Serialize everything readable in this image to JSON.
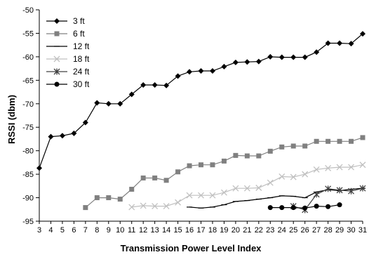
{
  "chart_data": {
    "type": "line",
    "xlabel": "Transmission Power Level Index",
    "ylabel": "RSSI (dbm)",
    "xlim": [
      3,
      31
    ],
    "ylim": [
      -95,
      -50
    ],
    "xticks": [
      3,
      4,
      5,
      6,
      7,
      8,
      9,
      10,
      11,
      12,
      13,
      14,
      15,
      16,
      17,
      18,
      19,
      20,
      21,
      22,
      23,
      24,
      25,
      26,
      27,
      28,
      29,
      30,
      31
    ],
    "yticks": [
      -95,
      -90,
      -85,
      -80,
      -75,
      -70,
      -65,
      -60,
      -55,
      -50
    ],
    "grid": false,
    "legend_position": "top-left",
    "series": [
      {
        "name": "3 ft",
        "color": "#000000",
        "marker": "diamond",
        "x": [
          3,
          4,
          5,
          6,
          7,
          8,
          9,
          10,
          11,
          12,
          13,
          14,
          15,
          16,
          17,
          18,
          19,
          20,
          21,
          22,
          23,
          24,
          25,
          26,
          27,
          28,
          29,
          30,
          31
        ],
        "y": [
          -83.7,
          -77,
          -76.8,
          -76.3,
          -74,
          -69.8,
          -70,
          -70,
          -68,
          -66,
          -66,
          -66.1,
          -64.1,
          -63.2,
          -63,
          -63,
          -62.1,
          -61.2,
          -61.1,
          -61,
          -60,
          -60.1,
          -60.1,
          -60.1,
          -59,
          -57.1,
          -57.1,
          -57.2,
          -55.1
        ]
      },
      {
        "name": "6 ft",
        "color": "#808080",
        "marker": "square",
        "x": [
          7,
          8,
          9,
          10,
          11,
          12,
          13,
          14,
          15,
          16,
          17,
          18,
          19,
          20,
          21,
          22,
          23,
          24,
          25,
          26,
          27,
          28,
          29,
          30,
          31
        ],
        "y": [
          -92.1,
          -90,
          -90,
          -90.3,
          -88.2,
          -85.8,
          -85.8,
          -86.3,
          -84.5,
          -83.2,
          -83,
          -83,
          -82.2,
          -81,
          -81.1,
          -81.1,
          -80.1,
          -79.2,
          -79,
          -79,
          -78,
          -78,
          -78,
          -78,
          -77.2
        ]
      },
      {
        "name": "12 ft",
        "color": "#000000",
        "marker": "dash",
        "x": [
          16,
          17,
          18,
          19,
          20,
          21,
          22,
          23,
          24,
          25,
          26,
          27,
          28,
          29,
          30,
          31
        ],
        "y": [
          -92,
          -92.2,
          -92,
          -91.5,
          -90.8,
          -90.6,
          -90.3,
          -90,
          -89.6,
          -89.7,
          -90,
          -88.8,
          -88.3,
          -88.5,
          -88.2,
          -88
        ]
      },
      {
        "name": "18 ft",
        "color": "#c0c0c0",
        "marker": "x",
        "x": [
          11,
          12,
          13,
          14,
          15,
          16,
          17,
          18,
          19,
          20,
          21,
          22,
          23,
          24,
          25,
          26,
          27,
          28,
          29,
          30,
          31
        ],
        "y": [
          -92,
          -91.7,
          -91.8,
          -91.8,
          -91,
          -89.5,
          -89.5,
          -89.5,
          -88.9,
          -88,
          -88,
          -87.9,
          -86.8,
          -85.5,
          -85.6,
          -85,
          -84,
          -83.7,
          -83.5,
          -83.5,
          -83
        ]
      },
      {
        "name": "24 ft",
        "color": "#404040",
        "marker": "star",
        "x": [
          25,
          26,
          27,
          28,
          29,
          30,
          31
        ],
        "y": [
          -91.8,
          -92.6,
          -89.3,
          -88.1,
          -88.4,
          -88.6,
          -88
        ]
      },
      {
        "name": "30 ft",
        "color": "#000000",
        "marker": "circle",
        "x": [
          23,
          24,
          25,
          26,
          27,
          28,
          29
        ],
        "y": [
          -92.1,
          -92.1,
          -92.1,
          -92.2,
          -91.8,
          -91.9,
          -91.5
        ]
      }
    ]
  }
}
